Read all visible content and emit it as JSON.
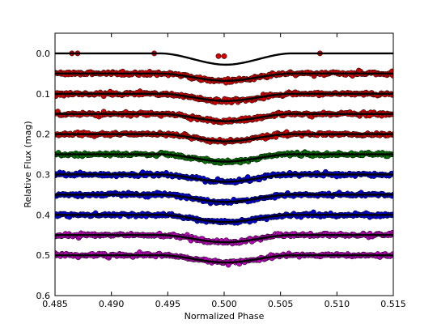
{
  "chart_data": {
    "type": "scatter",
    "xlabel": "Normalized Phase",
    "ylabel": "Relative Flux (mag)",
    "xlim": [
      0.485,
      0.515
    ],
    "ylim": [
      0.6,
      -0.05
    ],
    "y_inverted": true,
    "grid": false,
    "legend": "none",
    "x_ticks": [
      "0.485",
      "0.490",
      "0.495",
      "0.500",
      "0.505",
      "0.510",
      "0.515"
    ],
    "y_ticks": [
      "0.0",
      "0.1",
      "0.2",
      "0.3",
      "0.4",
      "0.5",
      "0.6"
    ],
    "x_tick_values": [
      0.485,
      0.49,
      0.495,
      0.5,
      0.505,
      0.51,
      0.515
    ],
    "y_tick_values": [
      0.0,
      0.1,
      0.2,
      0.3,
      0.4,
      0.5,
      0.6
    ],
    "model_curve_color": "#000000",
    "curves": [
      {
        "offset": 0.0,
        "color": "#d40000",
        "ingress": 0.4943,
        "egress": 0.506,
        "depth": 0.028,
        "points": "sparse"
      },
      {
        "offset": 0.05,
        "color": "#d40000",
        "ingress": 0.4943,
        "egress": 0.506,
        "depth": 0.018
      },
      {
        "offset": 0.1,
        "color": "#d40000",
        "ingress": 0.4943,
        "egress": 0.506,
        "depth": 0.018
      },
      {
        "offset": 0.15,
        "color": "#d40000",
        "ingress": 0.4943,
        "egress": 0.506,
        "depth": 0.018
      },
      {
        "offset": 0.2,
        "color": "#d40000",
        "ingress": 0.4943,
        "egress": 0.506,
        "depth": 0.018
      },
      {
        "offset": 0.25,
        "color": "#007a00",
        "ingress": 0.4943,
        "egress": 0.506,
        "depth": 0.018
      },
      {
        "offset": 0.3,
        "color": "#0000e0",
        "ingress": 0.4943,
        "egress": 0.506,
        "depth": 0.018
      },
      {
        "offset": 0.35,
        "color": "#0000e0",
        "ingress": 0.4943,
        "egress": 0.506,
        "depth": 0.018
      },
      {
        "offset": 0.4,
        "color": "#0000e0",
        "ingress": 0.4943,
        "egress": 0.506,
        "depth": 0.018
      },
      {
        "offset": 0.45,
        "color": "#c000c0",
        "ingress": 0.4943,
        "egress": 0.506,
        "depth": 0.018
      },
      {
        "offset": 0.5,
        "color": "#c000c0",
        "ingress": 0.4943,
        "egress": 0.506,
        "depth": 0.018
      }
    ]
  }
}
